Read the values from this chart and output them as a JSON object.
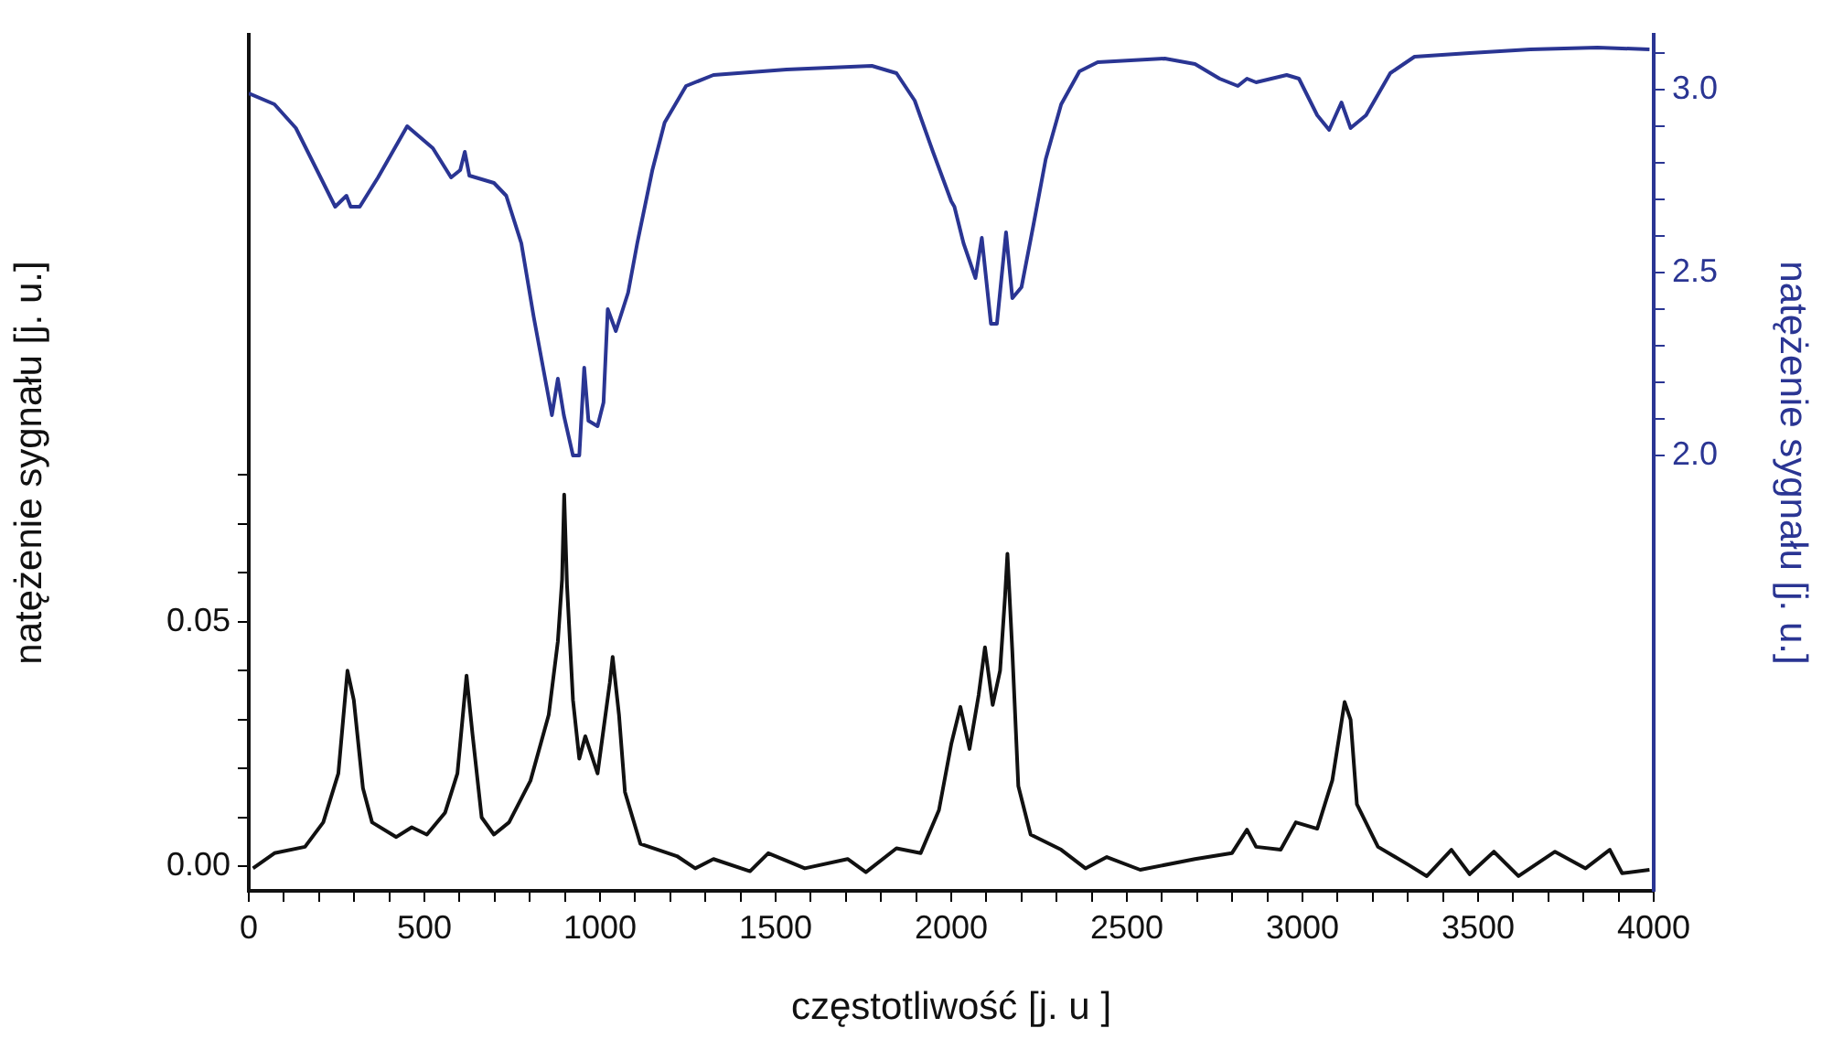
{
  "chart_data": {
    "type": "line",
    "xlabel": "częstotliwość [j. u ]",
    "ylabel": "natężenie sygnału [j. u.]",
    "y2label": "natężenie sygnału [j. u.]",
    "xlim": [
      0,
      4000
    ],
    "xticks": [
      0,
      {
        "value": 100,
        "label": null
      },
      {
        "value": 200,
        "label": null
      },
      {
        "value": 300,
        "label": null
      },
      {
        "value": 400,
        "label": null
      },
      500,
      {
        "value": 600,
        "label": null
      },
      {
        "value": 700,
        "label": null
      },
      {
        "value": 800,
        "label": null
      },
      {
        "value": 900,
        "label": null
      },
      1000,
      {
        "value": 1100,
        "label": null
      },
      {
        "value": 1200,
        "label": null
      },
      {
        "value": 1300,
        "label": null
      },
      {
        "value": 1400,
        "label": null
      },
      1500,
      {
        "value": 1600,
        "label": null
      },
      {
        "value": 1700,
        "label": null
      },
      {
        "value": 1800,
        "label": null
      },
      {
        "value": 1900,
        "label": null
      },
      2000,
      {
        "value": 2100,
        "label": null
      },
      {
        "value": 2200,
        "label": null
      },
      {
        "value": 2300,
        "label": null
      },
      {
        "value": 2400,
        "label": null
      },
      2500,
      {
        "value": 2600,
        "label": null
      },
      {
        "value": 2700,
        "label": null
      },
      {
        "value": 2800,
        "label": null
      },
      {
        "value": 2900,
        "label": null
      },
      3000,
      {
        "value": 3100,
        "label": null
      },
      {
        "value": 3200,
        "label": null
      },
      {
        "value": 3300,
        "label": null
      },
      {
        "value": 3400,
        "label": null
      },
      3500,
      {
        "value": 3600,
        "label": null
      },
      {
        "value": 3700,
        "label": null
      },
      {
        "value": 3800,
        "label": null
      },
      {
        "value": 3900,
        "label": null
      },
      4000
    ],
    "ylim": [
      -0.005,
      0.17
    ],
    "yticks": [
      {
        "value": 0,
        "label": "0.00"
      },
      {
        "value": 0.01,
        "label": null
      },
      {
        "value": 0.02,
        "label": null
      },
      {
        "value": 0.03,
        "label": null
      },
      {
        "value": 0.04,
        "label": null
      },
      0.05,
      {
        "value": 0.06,
        "label": null
      },
      {
        "value": 0.07,
        "label": null
      },
      {
        "value": 0.08,
        "label": null
      }
    ],
    "y2lim": [
      0.81,
      3.15
    ],
    "y2ticks": [
      {
        "value": 2,
        "label": "2.0"
      },
      {
        "value": 2.1,
        "label": null
      },
      {
        "value": 2.2,
        "label": null
      },
      {
        "value": 2.3,
        "label": null
      },
      {
        "value": 2.4,
        "label": null
      },
      2.5,
      {
        "value": 2.6,
        "label": null
      },
      {
        "value": 2.7,
        "label": null
      },
      {
        "value": 2.8,
        "label": null
      },
      {
        "value": 2.9,
        "label": null
      },
      {
        "value": 3,
        "label": "3.0"
      },
      {
        "value": 3.1,
        "label": null
      }
    ],
    "grid": false,
    "legend": false,
    "marker": "none",
    "line_style": "solid",
    "series": [
      {
        "color": "#2a3593",
        "axis": "y2",
        "x": [
          0,
          73,
          134,
          194,
          246,
          278,
          290,
          316,
          368,
          451,
          524,
          576,
          602,
          615,
          628,
          698,
          733,
          776,
          811,
          837,
          863,
          880,
          897,
          923,
          941,
          955,
          967,
          993,
          1010,
          1022,
          1045,
          1080,
          1106,
          1149,
          1184,
          1245,
          1323,
          1531,
          1774,
          1844,
          1896,
          1948,
          2000,
          2009,
          2035,
          2069,
          2087,
          2113,
          2130,
          2156,
          2174,
          2200,
          2234,
          2269,
          2313,
          2365,
          2417,
          2608,
          2694,
          2764,
          2816,
          2842,
          2868,
          2955,
          2990,
          3042,
          3076,
          3111,
          3137,
          3181,
          3250,
          3319,
          3476,
          3649,
          3840,
          3988
        ],
        "values": [
          2.99,
          2.96,
          2.895,
          2.78,
          2.68,
          2.71,
          2.68,
          2.68,
          2.76,
          2.9,
          2.84,
          2.76,
          2.78,
          2.83,
          2.765,
          2.745,
          2.71,
          2.58,
          2.38,
          2.245,
          2.11,
          2.21,
          2.11,
          2.0,
          2.0,
          2.24,
          2.095,
          2.08,
          2.145,
          2.4,
          2.34,
          2.445,
          2.58,
          2.78,
          2.91,
          3.01,
          3.04,
          3.055,
          3.065,
          3.045,
          2.97,
          2.83,
          2.695,
          2.68,
          2.58,
          2.485,
          2.595,
          2.36,
          2.36,
          2.61,
          2.43,
          2.46,
          2.63,
          2.81,
          2.96,
          3.05,
          3.075,
          3.085,
          3.07,
          3.03,
          3.01,
          3.03,
          3.02,
          3.04,
          3.03,
          2.93,
          2.89,
          2.965,
          2.895,
          2.93,
          3.045,
          3.09,
          3.1,
          3.11,
          3.115,
          3.11
        ]
      },
      {
        "color": "#111111",
        "x": [
          12,
          73,
          160,
          212,
          255,
          281,
          299,
          325,
          351,
          420,
          464,
          507,
          559,
          594,
          620,
          637,
          663,
          698,
          741,
          802,
          854,
          880,
          892,
          898,
          906,
          923,
          941,
          958,
          993,
          1028,
          1036,
          1054,
          1071,
          1115,
          1219,
          1271,
          1323,
          1427,
          1479,
          1583,
          1705,
          1757,
          1844,
          1913,
          1965,
          2000,
          2026,
          2052,
          2078,
          2096,
          2118,
          2139,
          2153,
          2160,
          2174,
          2191,
          2226,
          2313,
          2382,
          2443,
          2538,
          2694,
          2799,
          2842,
          2868,
          2938,
          2981,
          3042,
          3085,
          3120,
          3137,
          3155,
          3215,
          3302,
          3354,
          3424,
          3476,
          3545,
          3615,
          3719,
          3806,
          3875,
          3910,
          3988
        ],
        "values": [
          -0.0004,
          0.0027,
          0.004,
          0.009,
          0.019,
          0.04,
          0.034,
          0.016,
          0.009,
          0.006,
          0.008,
          0.0065,
          0.011,
          0.019,
          0.039,
          0.027,
          0.01,
          0.0065,
          0.009,
          0.0175,
          0.031,
          0.046,
          0.0587,
          0.076,
          0.0575,
          0.034,
          0.022,
          0.0266,
          0.019,
          0.0376,
          0.0428,
          0.031,
          0.0152,
          0.0046,
          0.0021,
          -0.0004,
          0.0015,
          -0.001,
          0.0027,
          -0.0004,
          0.0015,
          -0.0012,
          0.0037,
          0.0027,
          0.0115,
          0.025,
          0.0326,
          0.024,
          0.035,
          0.0448,
          0.033,
          0.04,
          0.055,
          0.0639,
          0.0438,
          0.0164,
          0.0065,
          0.0034,
          -0.0004,
          0.0019,
          -0.0007,
          0.0015,
          0.0027,
          0.0075,
          0.004,
          0.0034,
          0.009,
          0.0077,
          0.0176,
          0.0336,
          0.03,
          0.0127,
          0.004,
          0.0003,
          -0.002,
          0.0034,
          -0.0016,
          0.003,
          -0.002,
          0.003,
          -0.0004,
          0.0034,
          -0.0014,
          -0.0007
        ]
      }
    ]
  }
}
